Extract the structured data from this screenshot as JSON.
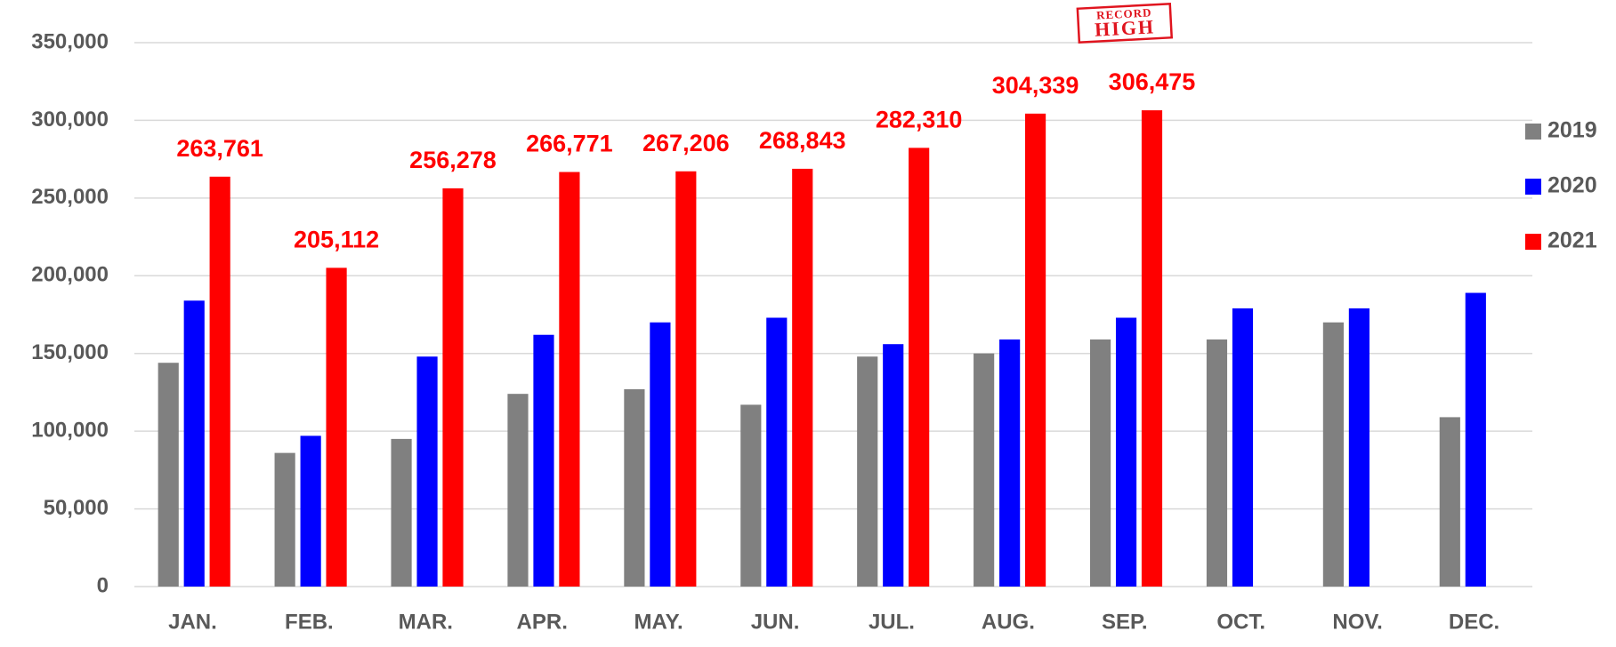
{
  "chart_data": {
    "type": "bar",
    "categories": [
      "JAN.",
      "FEB.",
      "MAR.",
      "APR.",
      "MAY.",
      "JUN.",
      "JUL.",
      "AUG.",
      "SEP.",
      "OCT.",
      "NOV.",
      "DEC."
    ],
    "series": [
      {
        "name": "2019",
        "color": "#808080",
        "values": [
          144000,
          86000,
          95000,
          124000,
          127000,
          117000,
          148000,
          150000,
          159000,
          159000,
          170000,
          109000
        ]
      },
      {
        "name": "2020",
        "color": "#0000ff",
        "values": [
          184000,
          97000,
          148000,
          162000,
          170000,
          173000,
          156000,
          159000,
          173000,
          179000,
          179000,
          189000
        ]
      },
      {
        "name": "2021",
        "color": "#ff0000",
        "values": [
          263761,
          205112,
          256278,
          266771,
          267206,
          268843,
          282310,
          304339,
          306475,
          null,
          null,
          null
        ],
        "value_labels": [
          "263,761",
          "205,112",
          "256,278",
          "266,771",
          "267,206",
          "268,843",
          "282,310",
          "304,339",
          "306,475",
          null,
          null,
          null
        ]
      }
    ],
    "ylim": [
      0,
      350000
    ],
    "yticks": [
      {
        "value": 0,
        "label": "0"
      },
      {
        "value": 50000,
        "label": "50,000"
      },
      {
        "value": 100000,
        "label": "100,000"
      },
      {
        "value": 150000,
        "label": "150,000"
      },
      {
        "value": 200000,
        "label": "200,000"
      },
      {
        "value": 250000,
        "label": "250,000"
      },
      {
        "value": 300000,
        "label": "300,000"
      },
      {
        "value": 350000,
        "label": "350,000"
      }
    ],
    "grid": true,
    "legend": "right",
    "annotation": {
      "lines": [
        "RECORD",
        "HIGH"
      ],
      "category": 8
    }
  }
}
